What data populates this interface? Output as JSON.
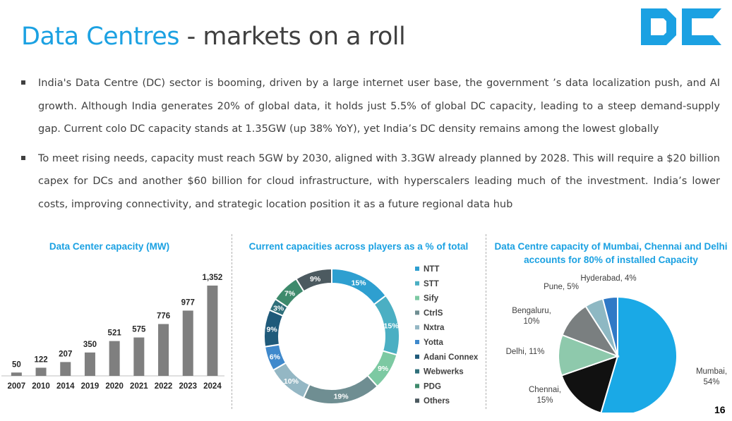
{
  "header": {
    "title_accent": "Data Centres",
    "title_rest": " - markets on a roll",
    "logo_text": "DC"
  },
  "bullets": [
    "India's Data Centre (DC) sector is booming, driven by a large internet user base, the government ’s data localization push, and AI growth. Although India generates 20% of global data, it holds just 5.5% of global DC capacity, leading to a steep demand-supply gap. Current colo DC capacity stands at 1.35GW (up 38% YoY), yet India’s DC density remains among the lowest globally",
    "To meet rising needs, capacity must reach 5GW by 2030, aligned with 3.3GW already planned by 2028. This will require a $20 billion capex for DCs and another $60 billion for cloud infrastructure, with hyperscalers leading much of the investment. India’s lower costs, improving connectivity, and strategic location position it as a future regional data hub"
  ],
  "page_number": "16",
  "colors": {
    "accent": "#1ba1e2",
    "bar": "#7f7f7f",
    "text": "#404040"
  },
  "chart_data": [
    {
      "type": "bar",
      "title": "Data Center capacity (MW)",
      "categories": [
        "2007",
        "2010",
        "2014",
        "2019",
        "2020",
        "2021",
        "2022",
        "2023",
        "2024"
      ],
      "values": [
        50,
        122,
        207,
        350,
        521,
        575,
        776,
        977,
        1352
      ],
      "labels": [
        "50",
        "122",
        "207",
        "350",
        "521",
        "575",
        "776",
        "977",
        "1,352"
      ],
      "xlabel": "",
      "ylabel": "",
      "ylim": [
        0,
        1400
      ],
      "grid": false
    },
    {
      "type": "pie",
      "style": "donut",
      "title": "Current capacities across players as a % of total",
      "categories": [
        "NTT",
        "STT",
        "Sify",
        "CtrlS",
        "Nxtra",
        "Yotta",
        "Adani Connex",
        "Webwerks",
        "PDG",
        "Others"
      ],
      "values": [
        15,
        15,
        9,
        19,
        10,
        6,
        9,
        3,
        7,
        9
      ],
      "labels": [
        "15%",
        "15%",
        "9%",
        "19%",
        "10%",
        "6%",
        "9%",
        "3%",
        "7%",
        "9%"
      ],
      "colors": [
        "#2e9fd0",
        "#4bafc3",
        "#7cc9a2",
        "#6f8e92",
        "#94b7c4",
        "#3f89cc",
        "#1f5a7a",
        "#2f6f7a",
        "#3e8a6c",
        "#4c5a60"
      ],
      "legend": "right"
    },
    {
      "type": "pie",
      "title": "Data Centre capacity of Mumbai, Chennai and Delhi accounts for 80% of installed Capacity",
      "categories": [
        "Mumbai",
        "Chennai",
        "Delhi",
        "Bengaluru",
        "Pune",
        "Hyderabad"
      ],
      "values": [
        54,
        15,
        11,
        10,
        5,
        4
      ],
      "labels": [
        "Mumbai,\n54%",
        "Chennai,\n15%",
        "Delhi, 11%",
        "Bengaluru,\n10%",
        "Pune, 5%",
        "Hyderabad, 4%"
      ],
      "colors": [
        "#1aa9e6",
        "#111111",
        "#8ec9ac",
        "#7a7f80",
        "#8eb8c3",
        "#2f79c6"
      ]
    }
  ]
}
